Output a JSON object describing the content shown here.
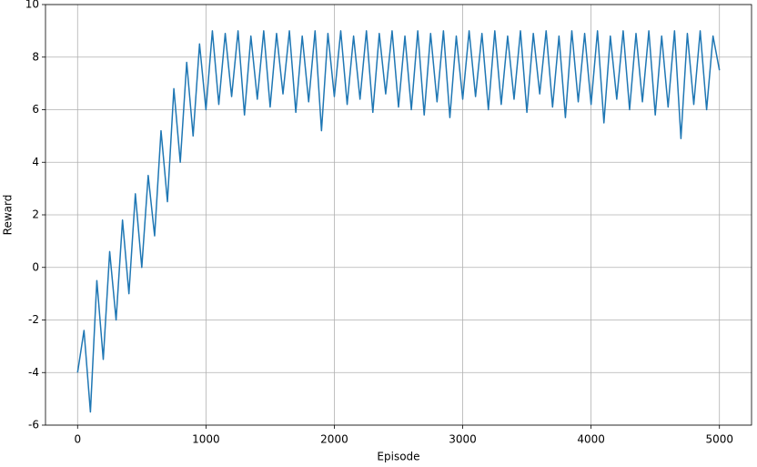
{
  "chart_data": {
    "type": "line",
    "x_label": "Episode",
    "y_label": "Reward",
    "x": [
      0,
      50,
      100,
      150,
      200,
      250,
      300,
      350,
      400,
      450,
      500,
      550,
      600,
      650,
      700,
      750,
      800,
      850,
      900,
      950,
      1000,
      1050,
      1100,
      1150,
      1200,
      1250,
      1300,
      1350,
      1400,
      1450,
      1500,
      1550,
      1600,
      1650,
      1700,
      1750,
      1800,
      1850,
      1900,
      1950,
      2000,
      2050,
      2100,
      2150,
      2200,
      2250,
      2300,
      2350,
      2400,
      2450,
      2500,
      2550,
      2600,
      2650,
      2700,
      2750,
      2800,
      2850,
      2900,
      2950,
      3000,
      3050,
      3100,
      3150,
      3200,
      3250,
      3300,
      3350,
      3400,
      3450,
      3500,
      3550,
      3600,
      3650,
      3700,
      3750,
      3800,
      3850,
      3900,
      3950,
      4000,
      4050,
      4100,
      4150,
      4200,
      4250,
      4300,
      4350,
      4400,
      4450,
      4500,
      4550,
      4600,
      4650,
      4700,
      4750,
      4800,
      4850,
      4900,
      4950,
      5000
    ],
    "series": [
      {
        "color": "#1f77b4",
        "values": [
          -4,
          -2.4,
          -5.5,
          -0.5,
          -3.5,
          0.6,
          -2,
          1.8,
          -1,
          2.8,
          0,
          3.5,
          1.2,
          5.2,
          2.5,
          6.8,
          4,
          7.8,
          5,
          8.5,
          6,
          9,
          6.2,
          8.9,
          6.5,
          9,
          5.8,
          8.8,
          6.4,
          9,
          6.1,
          8.9,
          6.6,
          9,
          5.9,
          8.8,
          6.3,
          9,
          5.2,
          8.9,
          6.5,
          9,
          6.2,
          8.8,
          6.4,
          9,
          5.9,
          8.9,
          6.6,
          9,
          6.1,
          8.8,
          6.0,
          9,
          5.8,
          8.9,
          6.3,
          9,
          5.7,
          8.8,
          6.4,
          9,
          6.5,
          8.9,
          6.0,
          9,
          6.2,
          8.8,
          6.4,
          9,
          5.9,
          8.9,
          6.6,
          9,
          6.1,
          8.8,
          5.7,
          9,
          6.3,
          8.9,
          6.2,
          9,
          5.5,
          8.8,
          6.4,
          9,
          6.0,
          8.9,
          6.3,
          9,
          5.8,
          8.8,
          6.1,
          9,
          4.9,
          8.9,
          6.2,
          9,
          6.0,
          8.8,
          7.5
        ]
      }
    ],
    "xlim": [
      -250,
      5250
    ],
    "ylim": [
      -6,
      10
    ],
    "xticks": [
      0,
      1000,
      2000,
      3000,
      4000,
      5000
    ],
    "yticks": [
      -6,
      -4,
      -2,
      0,
      2,
      4,
      6,
      8,
      10
    ],
    "grid": true
  }
}
